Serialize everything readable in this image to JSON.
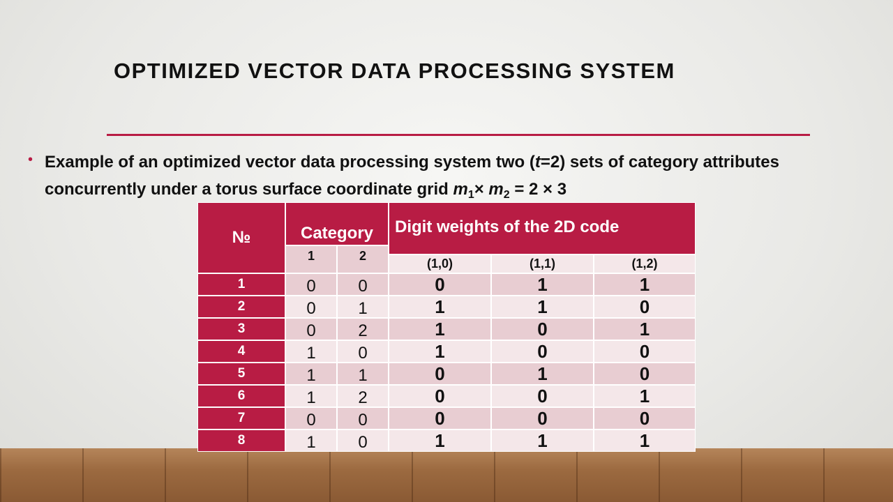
{
  "title": "OPTIMIZED VECTOR DATA PROCESSING SYSTEM",
  "bullet": {
    "parts": [
      "Example of an optimized vector data processing system two (",
      "t",
      "=2) sets of category attributes",
      "concurrently under a torus surface coordinate grid ",
      "m",
      "1",
      "× ",
      "m",
      "2",
      " = 2 × 3"
    ]
  },
  "table": {
    "header": {
      "number": "№",
      "category": "Category",
      "category_columns": [
        1,
        2
      ],
      "weights": "Digit weights of the 2D code",
      "weight_columns": [
        "(1,0)",
        "(1,1)",
        "(1,2)"
      ]
    },
    "rows": [
      [
        1,
        0,
        0,
        0,
        1,
        1
      ],
      [
        2,
        0,
        1,
        1,
        1,
        0
      ],
      [
        3,
        0,
        2,
        1,
        0,
        1
      ],
      [
        4,
        1,
        0,
        1,
        0,
        0
      ],
      [
        5,
        1,
        1,
        0,
        1,
        0
      ],
      [
        6,
        1,
        2,
        0,
        0,
        1
      ],
      [
        7,
        0,
        0,
        0,
        0,
        0
      ],
      [
        8,
        1,
        0,
        1,
        1,
        1
      ]
    ]
  }
}
